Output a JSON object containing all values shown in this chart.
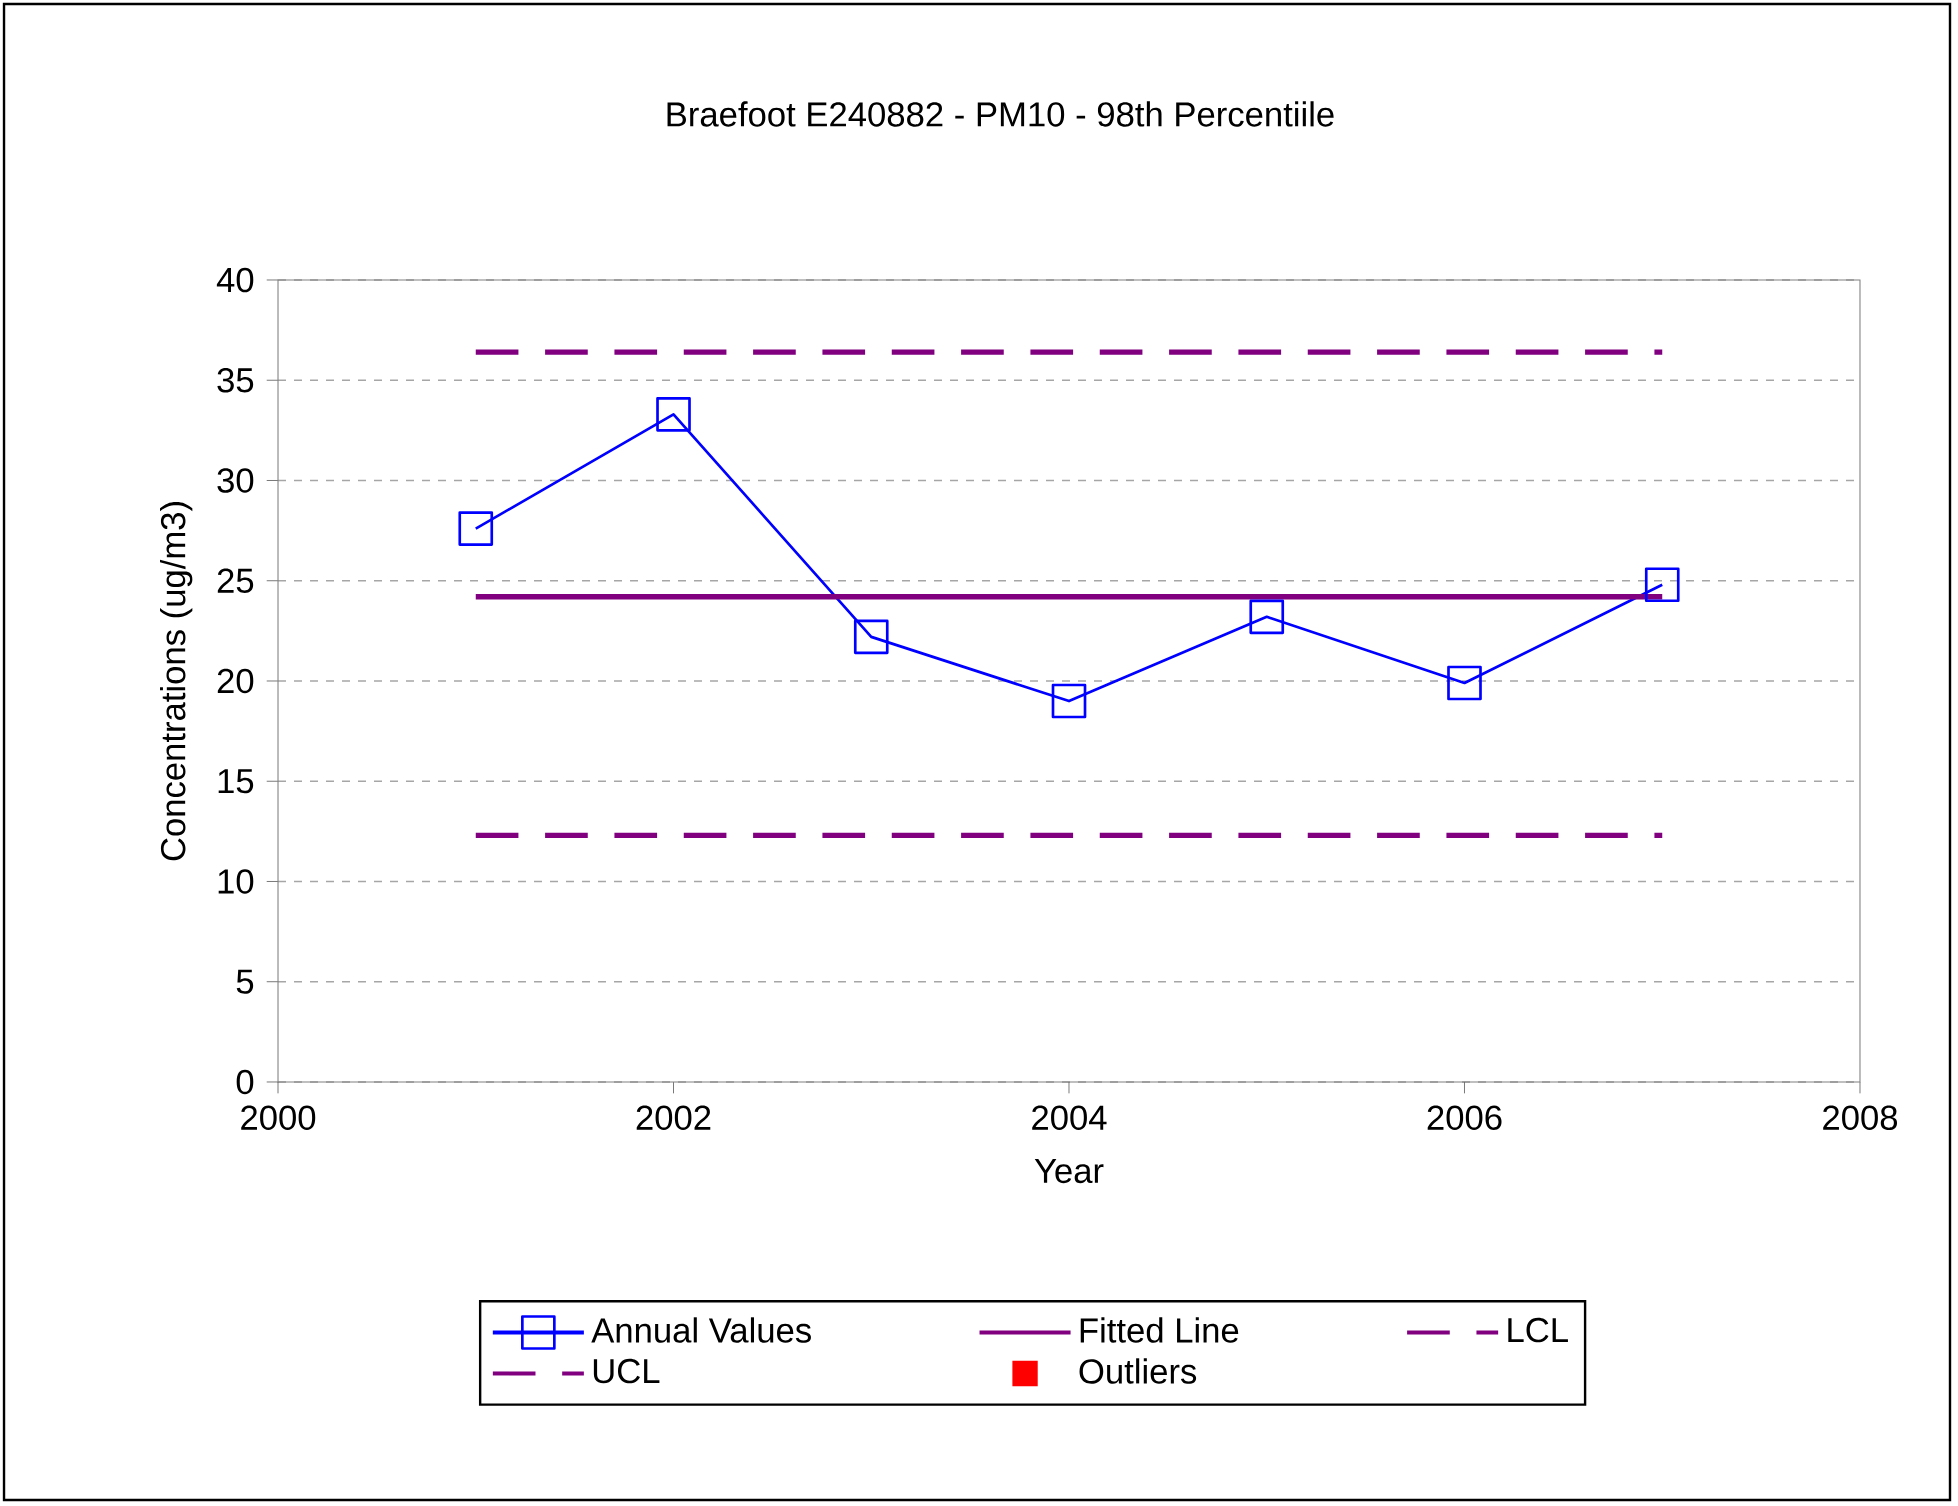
{
  "chart_data": {
    "type": "line",
    "title": "Braefoot E240882 - PM10 - 98th Percentiile",
    "xlabel": "Year",
    "ylabel": "Concentrations (ug/m3)",
    "series": [
      {
        "name": "Annual Values",
        "color": "#0000ff",
        "marker": "square",
        "line_style": "solid",
        "x": [
          2001,
          2002,
          2003,
          2004,
          2005,
          2006,
          2007
        ],
        "values": [
          27.6,
          33.3,
          22.2,
          19.0,
          23.2,
          19.9,
          24.8
        ]
      },
      {
        "name": "Fitted Line",
        "color": "#800080",
        "marker": "none",
        "line_style": "solid",
        "x": [
          2001,
          2007
        ],
        "values": [
          24.2,
          24.2
        ]
      },
      {
        "name": "LCL",
        "color": "#800080",
        "marker": "none",
        "line_style": "dashed",
        "x": [
          2001,
          2007
        ],
        "values": [
          12.3,
          12.3
        ]
      },
      {
        "name": "UCL",
        "color": "#800080",
        "marker": "none",
        "line_style": "dashed",
        "x": [
          2001,
          2007
        ],
        "values": [
          36.4,
          36.4
        ]
      },
      {
        "name": "Outliers",
        "type": "scatter",
        "color": "#ff0000",
        "marker": "square"
      }
    ],
    "xlim": [
      2000,
      2008
    ],
    "xticks": [
      2000,
      2002,
      2004,
      2006,
      2008
    ],
    "ylim": [
      0,
      40
    ],
    "yticks": [
      0,
      5,
      10,
      15,
      20,
      25,
      30,
      35,
      40
    ],
    "grid": "y",
    "legend": "bottom"
  }
}
